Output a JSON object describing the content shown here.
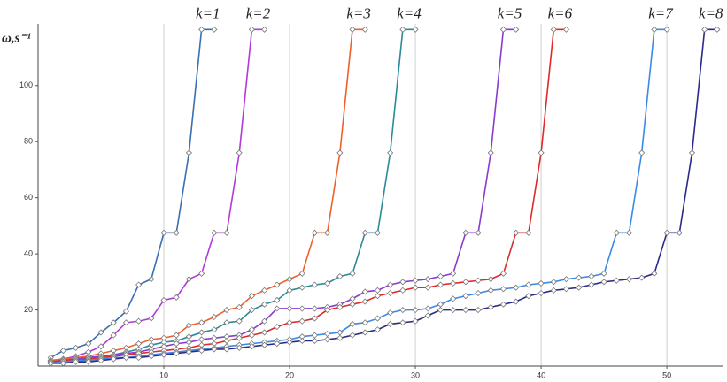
{
  "chart_data": {
    "type": "line",
    "ylabel": "ω,s⁻¹",
    "x": [
      1,
      2,
      3,
      4,
      5,
      6,
      7,
      8,
      9,
      10,
      11,
      12,
      13,
      14,
      15,
      16,
      17,
      18,
      19,
      20,
      21,
      22,
      23,
      24,
      25,
      26,
      27,
      28,
      29,
      30,
      31,
      32,
      33,
      34,
      35,
      36,
      37,
      38,
      39,
      40,
      41,
      42,
      43,
      44,
      45,
      46,
      47,
      48,
      49,
      50,
      51,
      52,
      53,
      54
    ],
    "xlim": [
      0,
      54.5
    ],
    "ylim": [
      0,
      122
    ],
    "xticks": [
      10,
      20,
      30,
      40,
      50
    ],
    "yticks": [
      20,
      40,
      60,
      80,
      100
    ],
    "grid": true,
    "series": [
      {
        "name": "k=1",
        "color": "#3a6fb0",
        "values": [
          3,
          5.5,
          6.5,
          8,
          12,
          15.5,
          19.5,
          29,
          31,
          47.5,
          47.5,
          76,
          120,
          120,
          null,
          null,
          null,
          null,
          null,
          null,
          null,
          null,
          null,
          null,
          null,
          null,
          null,
          null,
          null,
          null,
          null,
          null,
          null,
          null,
          null,
          null,
          null,
          null,
          null,
          null,
          null,
          null,
          null,
          null,
          null,
          null,
          null,
          null,
          null,
          null,
          null,
          null,
          null,
          null
        ]
      },
      {
        "name": "k=2",
        "color": "#b03ad8",
        "values": [
          2,
          2.5,
          3.5,
          5,
          7,
          11,
          15.5,
          16,
          17,
          23.5,
          24.5,
          31,
          33,
          47.5,
          47.5,
          76,
          120,
          120,
          null,
          null,
          null,
          null,
          null,
          null,
          null,
          null,
          null,
          null,
          null,
          null,
          null,
          null,
          null,
          null,
          null,
          null,
          null,
          null,
          null,
          null,
          null,
          null,
          null,
          null,
          null,
          null,
          null,
          null,
          null,
          null,
          null,
          null,
          null,
          null
        ]
      },
      {
        "name": "k=3",
        "color": "#f0602a",
        "values": [
          2,
          2.5,
          3,
          3.5,
          4.5,
          5.5,
          6.5,
          8,
          9.5,
          10,
          11,
          14.5,
          15.5,
          17.5,
          20,
          21,
          25,
          27,
          29,
          31,
          33,
          47.5,
          47.5,
          76,
          120,
          120,
          null,
          null,
          null,
          null,
          null,
          null,
          null,
          null,
          null,
          null,
          null,
          null,
          null,
          null,
          null,
          null,
          null,
          null,
          null,
          null,
          null,
          null,
          null,
          null,
          null,
          null,
          null,
          null
        ]
      },
      {
        "name": "k=4",
        "color": "#2a8a9a",
        "values": [
          1.5,
          2,
          2.5,
          3,
          3.5,
          4,
          5,
          6,
          7.5,
          8.5,
          9,
          10.5,
          12,
          13,
          15.5,
          16,
          20,
          22,
          23.5,
          27,
          28,
          29,
          29.5,
          32,
          33,
          47.5,
          47.5,
          76,
          120,
          120,
          null,
          null,
          null,
          null,
          null,
          null,
          null,
          null,
          null,
          null,
          null,
          null,
          null,
          null,
          null,
          null,
          null,
          null,
          null,
          null,
          null,
          null,
          null,
          null
        ]
      },
      {
        "name": "k=5",
        "color": "#8a3ad0",
        "values": [
          1.5,
          2,
          2.5,
          3,
          3.5,
          4,
          4.5,
          5,
          6,
          7,
          8,
          8.5,
          9.5,
          10,
          10.5,
          11,
          13,
          16,
          20.5,
          20.5,
          20.5,
          20.5,
          21,
          22,
          24,
          26.5,
          27,
          29,
          30,
          30.5,
          31,
          32,
          33,
          47.5,
          47.5,
          76,
          120,
          120,
          null,
          null,
          null,
          null,
          null,
          null,
          null,
          null,
          null,
          null,
          null,
          null,
          null,
          null,
          null,
          null
        ]
      },
      {
        "name": "k=6",
        "color": "#e02a2a",
        "values": [
          1.5,
          2,
          2,
          2.5,
          3,
          3.5,
          4,
          4.5,
          5,
          5.5,
          6,
          6.5,
          7.5,
          8,
          9,
          10,
          11,
          12,
          14,
          15.5,
          16,
          17,
          20,
          21,
          22,
          23,
          25,
          26,
          27,
          28,
          28,
          29,
          29.5,
          30,
          30.5,
          31,
          33,
          47.5,
          47.5,
          76,
          120,
          120,
          null,
          null,
          null,
          null,
          null,
          null,
          null,
          null,
          null,
          null,
          null,
          null
        ]
      },
      {
        "name": "k=7",
        "color": "#3a8ae8",
        "values": [
          1,
          1.5,
          2,
          2,
          2.5,
          3,
          3,
          3.5,
          4,
          4.5,
          5,
          5.5,
          6,
          6.5,
          7,
          7.5,
          8,
          8.5,
          9,
          9.5,
          10.5,
          11,
          11.5,
          12,
          15,
          15.5,
          17,
          19,
          20,
          20,
          20.5,
          22,
          24,
          25,
          26,
          27,
          27.5,
          28,
          29,
          29.5,
          30,
          31,
          31.5,
          32,
          33,
          47.5,
          47.5,
          76,
          120,
          120,
          null,
          null,
          null,
          null
        ]
      },
      {
        "name": "k=8",
        "color": "#2a2a8a",
        "values": [
          1,
          1,
          1.5,
          1.5,
          2,
          2.5,
          3,
          3,
          3.5,
          4,
          4.5,
          5,
          5.5,
          6,
          6,
          6.5,
          7,
          7.5,
          8,
          8.5,
          9,
          9,
          9.5,
          10,
          11,
          12,
          13,
          15,
          15.5,
          16,
          18,
          20,
          20,
          20,
          20,
          21,
          22,
          23,
          25,
          26,
          27,
          27.5,
          28,
          29,
          30,
          30.5,
          31,
          31.5,
          33,
          47.5,
          47.5,
          76,
          120,
          120
        ]
      }
    ]
  }
}
